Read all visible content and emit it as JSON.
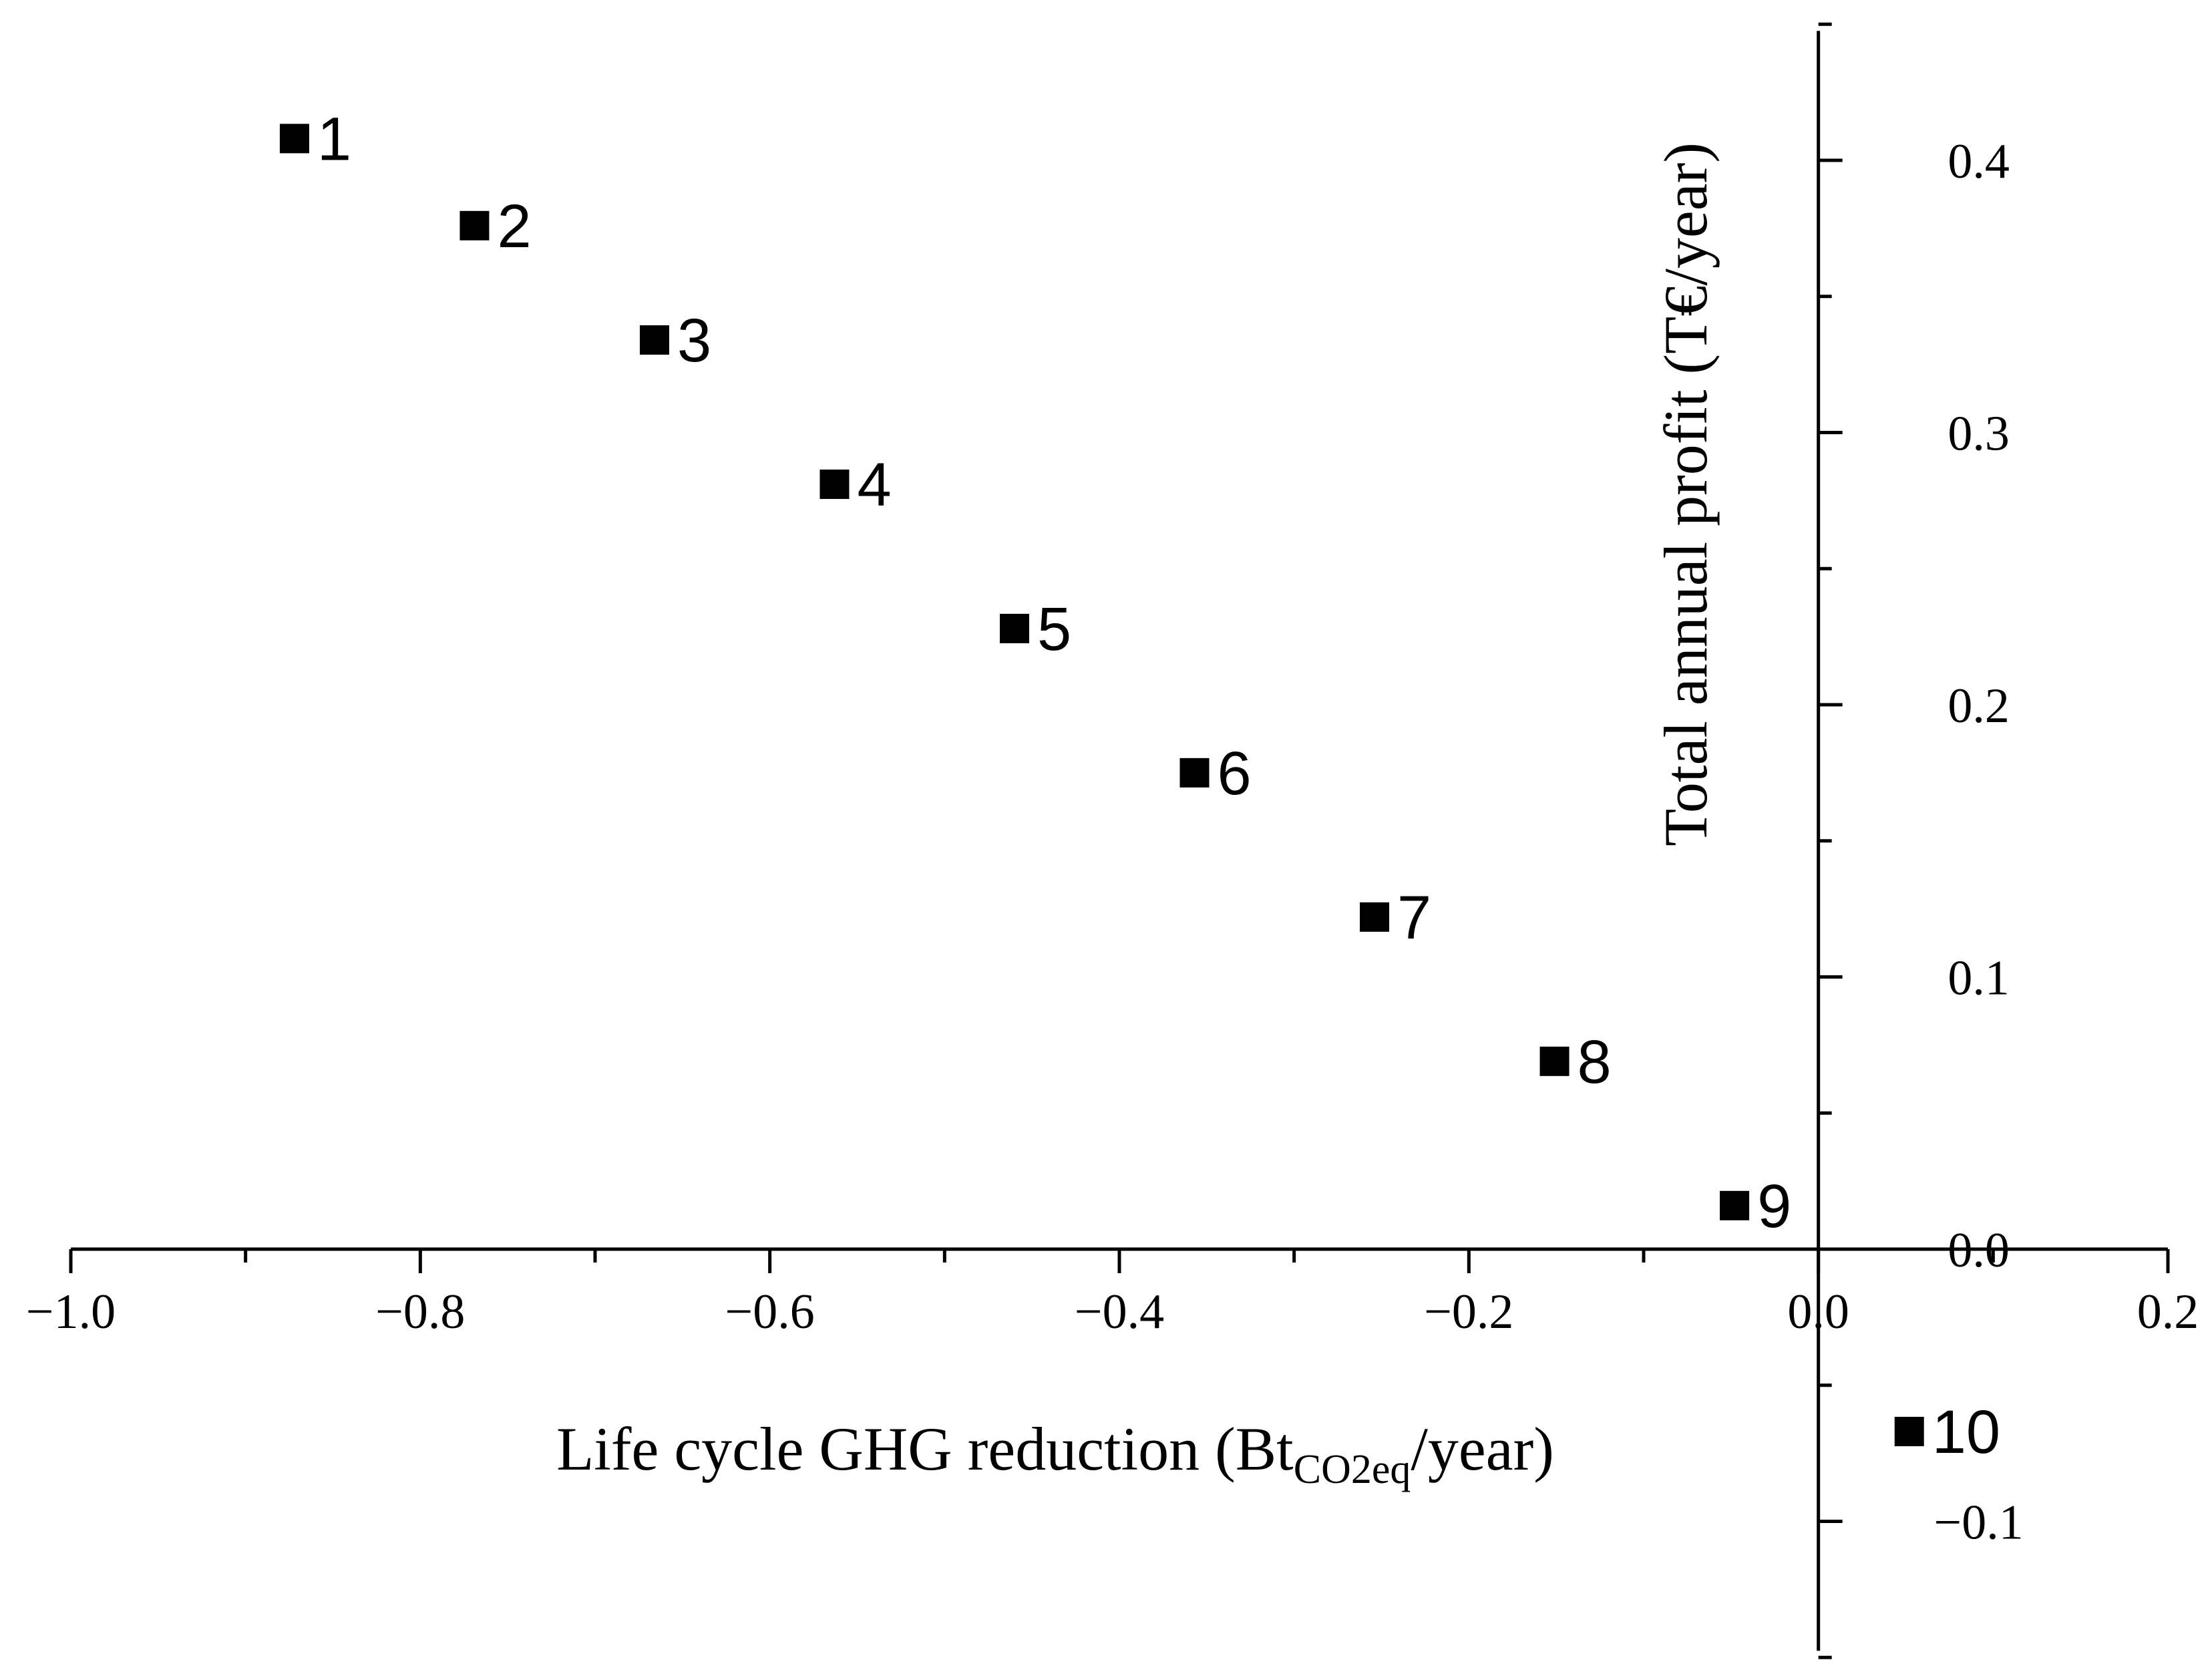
{
  "chart_data": {
    "type": "scatter",
    "title": "",
    "xlabel": {
      "main": "Life cycle GHG reduction (Bt",
      "subscript": "CO2eq",
      "suffix": "/year)"
    },
    "ylabel": "Total annual profit (T€/year)",
    "xlim": [
      -1.0,
      0.2
    ],
    "ylim": [
      -0.15,
      0.45
    ],
    "x_ticks": [
      -1.0,
      -0.8,
      -0.6,
      -0.4,
      -0.2,
      0.0,
      0.2
    ],
    "x_tick_labels": [
      "−1.0",
      "−0.8",
      "−0.6",
      "−0.4",
      "−0.2",
      "0.0",
      "0.2"
    ],
    "y_ticks": [
      -0.1,
      0.0,
      0.1,
      0.2,
      0.3,
      0.4
    ],
    "y_tick_labels": [
      "−0.1",
      "0.0",
      "0.1",
      "0.2",
      "0.3",
      "0.4"
    ],
    "axes_cross_at_zero": true,
    "grid": false,
    "legend": "none",
    "marker": "square",
    "marker_color": "#000000",
    "points": [
      {
        "label": "1",
        "x": -0.872,
        "y": 0.408
      },
      {
        "label": "2",
        "x": -0.769,
        "y": 0.376
      },
      {
        "label": "3",
        "x": -0.666,
        "y": 0.334
      },
      {
        "label": "4",
        "x": -0.563,
        "y": 0.281
      },
      {
        "label": "5",
        "x": -0.46,
        "y": 0.228
      },
      {
        "label": "6",
        "x": -0.357,
        "y": 0.175
      },
      {
        "label": "7",
        "x": -0.254,
        "y": 0.122
      },
      {
        "label": "8",
        "x": -0.151,
        "y": 0.069
      },
      {
        "label": "9",
        "x": -0.048,
        "y": 0.016
      },
      {
        "label": "10",
        "x": 0.052,
        "y": -0.067
      }
    ]
  }
}
